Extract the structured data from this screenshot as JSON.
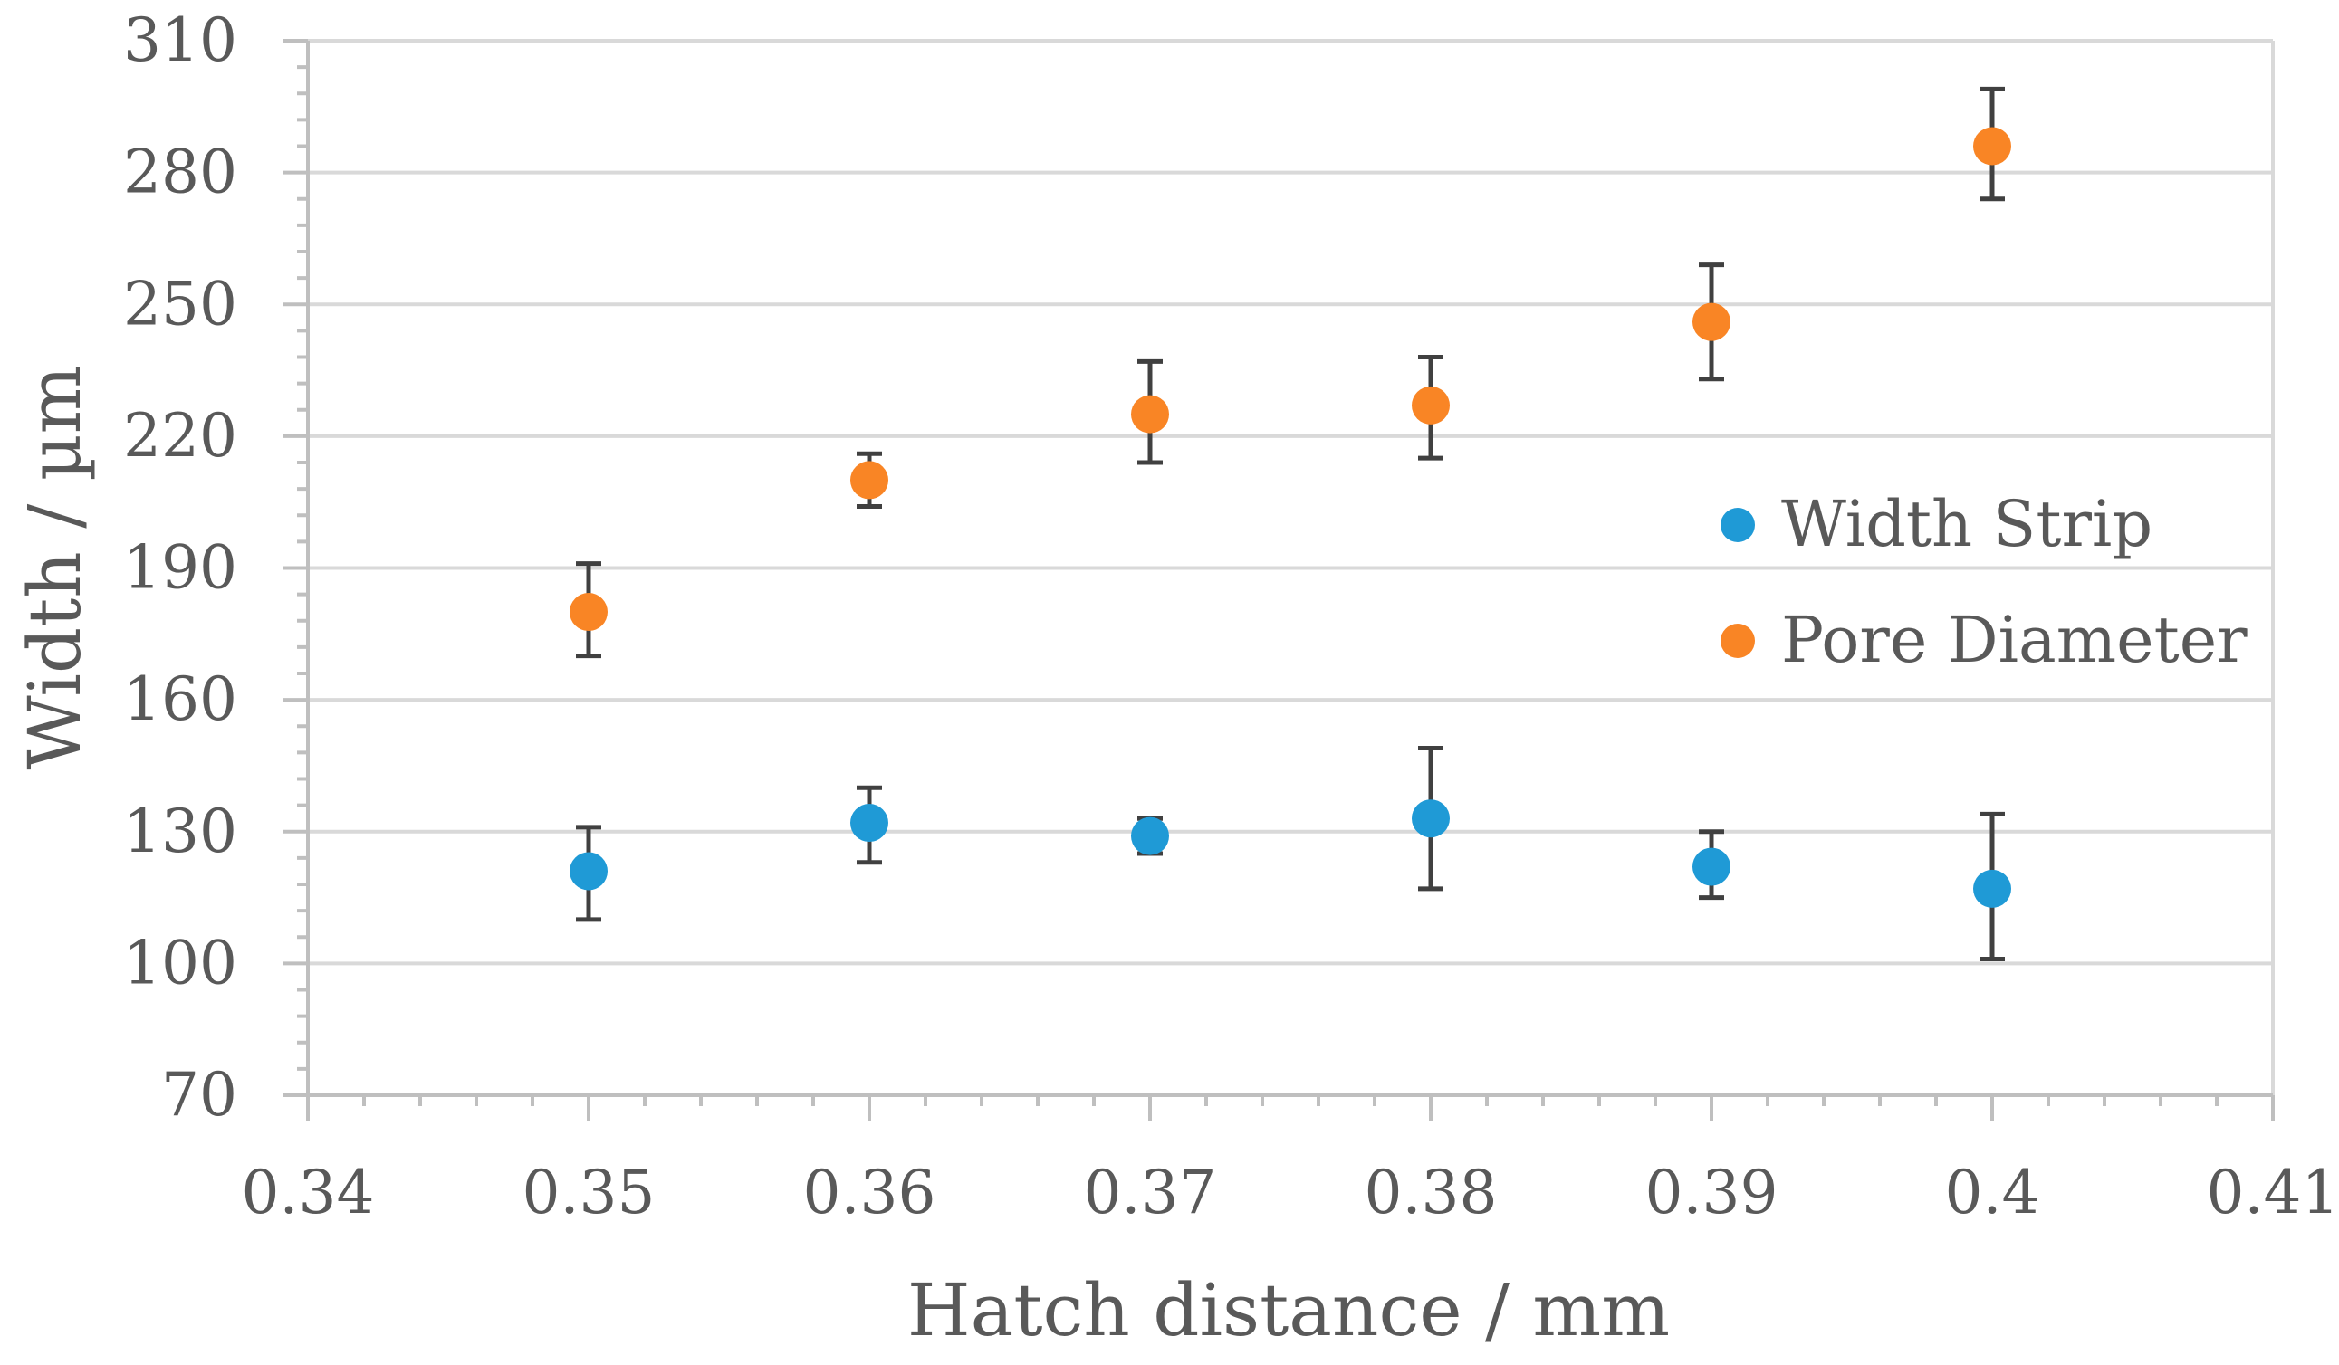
{
  "chart_data": {
    "type": "scatter",
    "title": "",
    "xlabel": "Hatch distance / mm",
    "ylabel": "Width / µm",
    "xlim": [
      0.34,
      0.41
    ],
    "ylim": [
      70,
      310
    ],
    "x_ticks": [
      0.34,
      0.35,
      0.36,
      0.37,
      0.38,
      0.39,
      0.4,
      0.41
    ],
    "x_tick_labels": [
      "0.34",
      "0.35",
      "0.36",
      "0.37",
      "0.38",
      "0.39",
      "0.4",
      "0.41"
    ],
    "y_ticks": [
      70,
      100,
      130,
      160,
      190,
      220,
      250,
      280,
      310
    ],
    "y_tick_labels": [
      "70",
      "100",
      "130",
      "160",
      "190",
      "220",
      "250",
      "280",
      "310"
    ],
    "grid": true,
    "legend_position": "right",
    "series": [
      {
        "name": "Width Strip",
        "color": "#1f9ad6",
        "x": [
          0.35,
          0.36,
          0.37,
          0.38,
          0.39,
          0.4
        ],
        "y": [
          121,
          132,
          129,
          133,
          122,
          117
        ],
        "err_low": [
          11,
          9,
          4,
          16,
          7,
          16
        ],
        "err_high": [
          10,
          8,
          4,
          16,
          8,
          17
        ]
      },
      {
        "name": "Pore Diameter",
        "color": "#f98525",
        "x": [
          0.35,
          0.36,
          0.37,
          0.38,
          0.39,
          0.4
        ],
        "y": [
          180,
          210,
          225,
          227,
          246,
          286
        ],
        "err_low": [
          10,
          6,
          11,
          12,
          13,
          12
        ],
        "err_high": [
          11,
          6,
          12,
          11,
          13,
          13
        ]
      }
    ]
  }
}
